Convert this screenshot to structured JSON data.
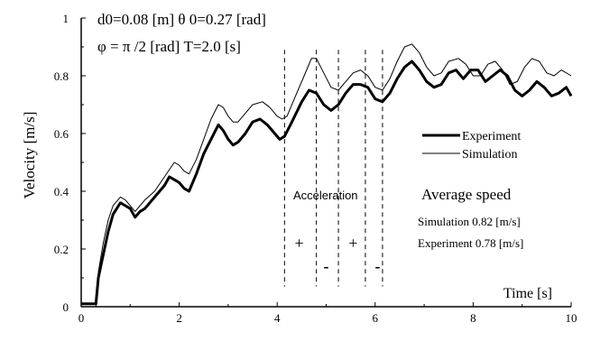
{
  "chart_data": {
    "type": "line",
    "parameters": {
      "line1": "d0=0.08 [m]    θ 0=0.27 [rad]",
      "line2": "φ = π /2 [rad]  T=2.0 [s]"
    },
    "xlabel": "Time [s]",
    "ylabel": "Velocity [m/s]",
    "xlim": [
      0,
      10
    ],
    "ylim": [
      0,
      1
    ],
    "x_ticks": [
      "0",
      "2",
      "4",
      "6",
      "8",
      "10"
    ],
    "y_ticks": [
      "0",
      "0.2",
      "0.4",
      "0.6",
      "0.8",
      "1"
    ],
    "grid": false,
    "legend_position": "right",
    "series": [
      {
        "name": "Experiment",
        "style": "thick",
        "color": "#000000",
        "x": [
          0,
          0.15,
          0.3,
          0.35,
          0.45,
          0.55,
          0.65,
          0.8,
          0.9,
          1.0,
          1.1,
          1.2,
          1.3,
          1.5,
          1.7,
          1.8,
          1.9,
          2.0,
          2.1,
          2.2,
          2.35,
          2.5,
          2.65,
          2.8,
          2.9,
          3.0,
          3.1,
          3.2,
          3.35,
          3.5,
          3.65,
          3.8,
          3.95,
          4.05,
          4.15,
          4.3,
          4.5,
          4.65,
          4.8,
          4.95,
          5.1,
          5.25,
          5.4,
          5.55,
          5.7,
          5.85,
          6.0,
          6.15,
          6.3,
          6.45,
          6.6,
          6.75,
          6.9,
          7.05,
          7.2,
          7.35,
          7.5,
          7.65,
          7.8,
          7.95,
          8.1,
          8.25,
          8.4,
          8.55,
          8.7,
          8.85,
          9.0,
          9.15,
          9.3,
          9.45,
          9.6,
          9.75,
          9.9,
          10.0
        ],
        "y": [
          0.01,
          0.01,
          0.01,
          0.1,
          0.18,
          0.26,
          0.32,
          0.36,
          0.35,
          0.34,
          0.31,
          0.33,
          0.34,
          0.38,
          0.42,
          0.45,
          0.44,
          0.43,
          0.41,
          0.4,
          0.46,
          0.53,
          0.58,
          0.63,
          0.61,
          0.58,
          0.56,
          0.57,
          0.6,
          0.64,
          0.65,
          0.63,
          0.6,
          0.58,
          0.59,
          0.64,
          0.71,
          0.75,
          0.74,
          0.7,
          0.68,
          0.7,
          0.74,
          0.77,
          0.77,
          0.76,
          0.72,
          0.71,
          0.74,
          0.79,
          0.83,
          0.85,
          0.82,
          0.78,
          0.76,
          0.77,
          0.81,
          0.82,
          0.79,
          0.82,
          0.82,
          0.78,
          0.8,
          0.82,
          0.8,
          0.75,
          0.73,
          0.75,
          0.78,
          0.76,
          0.73,
          0.74,
          0.76,
          0.73
        ]
      },
      {
        "name": "Simulation",
        "style": "thin",
        "color": "#000000",
        "x": [
          0,
          0.3,
          0.35,
          0.45,
          0.55,
          0.65,
          0.8,
          0.9,
          1.0,
          1.1,
          1.2,
          1.3,
          1.5,
          1.7,
          1.9,
          2.0,
          2.1,
          2.2,
          2.35,
          2.5,
          2.65,
          2.8,
          2.9,
          3.0,
          3.1,
          3.2,
          3.35,
          3.5,
          3.7,
          3.85,
          4.0,
          4.1,
          4.2,
          4.35,
          4.55,
          4.7,
          4.8,
          4.95,
          5.1,
          5.25,
          5.4,
          5.55,
          5.7,
          5.85,
          6.0,
          6.15,
          6.3,
          6.45,
          6.6,
          6.75,
          6.9,
          7.05,
          7.2,
          7.35,
          7.5,
          7.7,
          7.85,
          8.0,
          8.15,
          8.3,
          8.45,
          8.6,
          8.75,
          8.9,
          9.05,
          9.2,
          9.35,
          9.5,
          9.65,
          9.8,
          10.0
        ],
        "y": [
          0.0,
          0.0,
          0.12,
          0.22,
          0.3,
          0.35,
          0.38,
          0.37,
          0.35,
          0.33,
          0.35,
          0.37,
          0.4,
          0.45,
          0.5,
          0.49,
          0.47,
          0.46,
          0.51,
          0.58,
          0.65,
          0.7,
          0.69,
          0.66,
          0.64,
          0.64,
          0.67,
          0.7,
          0.71,
          0.69,
          0.66,
          0.65,
          0.66,
          0.72,
          0.8,
          0.86,
          0.86,
          0.81,
          0.76,
          0.75,
          0.78,
          0.81,
          0.82,
          0.8,
          0.76,
          0.75,
          0.79,
          0.85,
          0.9,
          0.91,
          0.88,
          0.83,
          0.8,
          0.81,
          0.85,
          0.86,
          0.84,
          0.8,
          0.8,
          0.84,
          0.85,
          0.82,
          0.77,
          0.78,
          0.83,
          0.86,
          0.85,
          0.81,
          0.8,
          0.82,
          0.8
        ]
      }
    ],
    "annotations": {
      "acceleration_label": "Acceleration",
      "dashed_x": [
        4.15,
        4.8,
        5.25,
        5.8,
        6.15
      ],
      "signs": [
        {
          "text": "+",
          "x": 4.45,
          "y": 0.22
        },
        {
          "text": "-",
          "x": 5.0,
          "y": 0.14
        },
        {
          "text": "+",
          "x": 5.55,
          "y": 0.22
        },
        {
          "text": "-",
          "x": 6.05,
          "y": 0.14
        }
      ],
      "average_speed_title": "Average speed",
      "average_simulation": "Simulation  0.82 [m/s]",
      "average_experiment": "Experiment 0.78 [m/s]"
    }
  }
}
